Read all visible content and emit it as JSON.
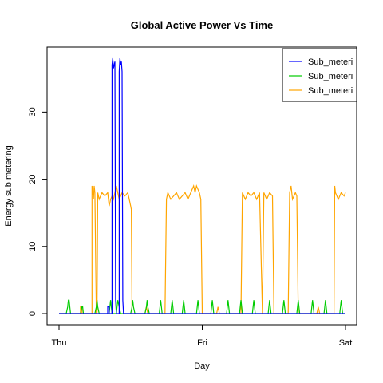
{
  "chart_data": {
    "type": "line",
    "title": "Global Active Power Vs Time",
    "xlabel": "Day",
    "ylabel": "Energy sub metering",
    "x_ticks": [
      "Thu",
      "Fri",
      "Sat"
    ],
    "xlim": [
      0,
      2
    ],
    "ylim": [
      0,
      38
    ],
    "y_ticks": [
      0,
      10,
      20,
      30
    ],
    "grid": false,
    "legend_position": "top-right",
    "legend_entries": [
      "Sub_meteri",
      "Sub_meteri",
      "Sub_meteri"
    ],
    "colors": {
      "sub_metering_1": "#0000ff",
      "sub_metering_2": "#00cc00",
      "sub_metering_3": "#ffa500"
    },
    "series": [
      {
        "name": "Sub_meteri",
        "color": "#0000ff",
        "points": [
          [
            0,
            0
          ],
          [
            0.34,
            0
          ],
          [
            0.34,
            1
          ],
          [
            0.35,
            1
          ],
          [
            0.35,
            0
          ],
          [
            0.37,
            0
          ],
          [
            0.37,
            37
          ],
          [
            0.375,
            38
          ],
          [
            0.38,
            36.5
          ],
          [
            0.385,
            37
          ],
          [
            0.39,
            37.5
          ],
          [
            0.395,
            2
          ],
          [
            0.4,
            0
          ],
          [
            0.42,
            0
          ],
          [
            0.42,
            36
          ],
          [
            0.425,
            38
          ],
          [
            0.43,
            37
          ],
          [
            0.435,
            37.5
          ],
          [
            0.44,
            36
          ],
          [
            0.445,
            2
          ],
          [
            0.45,
            0
          ],
          [
            2,
            0
          ]
        ]
      },
      {
        "name": "Sub_meteri",
        "color": "#00cc00",
        "points": [
          [
            0,
            0
          ],
          [
            0.05,
            0
          ],
          [
            0.06,
            1
          ],
          [
            0.065,
            2
          ],
          [
            0.07,
            2
          ],
          [
            0.075,
            1
          ],
          [
            0.08,
            0
          ],
          [
            0.15,
            0
          ],
          [
            0.16,
            1
          ],
          [
            0.165,
            1
          ],
          [
            0.17,
            0
          ],
          [
            0.25,
            0
          ],
          [
            0.26,
            1
          ],
          [
            0.265,
            2
          ],
          [
            0.27,
            1
          ],
          [
            0.28,
            0
          ],
          [
            0.35,
            0
          ],
          [
            0.355,
            1
          ],
          [
            0.36,
            2
          ],
          [
            0.365,
            1
          ],
          [
            0.37,
            0
          ],
          [
            0.4,
            0
          ],
          [
            0.405,
            1
          ],
          [
            0.41,
            2
          ],
          [
            0.42,
            1
          ],
          [
            0.43,
            0
          ],
          [
            0.5,
            0
          ],
          [
            0.51,
            1
          ],
          [
            0.515,
            2
          ],
          [
            0.52,
            1
          ],
          [
            0.53,
            0
          ],
          [
            0.6,
            0
          ],
          [
            0.61,
            1
          ],
          [
            0.615,
            2
          ],
          [
            0.62,
            1
          ],
          [
            0.63,
            0
          ],
          [
            0.7,
            0
          ],
          [
            0.705,
            1
          ],
          [
            0.71,
            2
          ],
          [
            0.715,
            1
          ],
          [
            0.72,
            0
          ],
          [
            0.78,
            0
          ],
          [
            0.785,
            1
          ],
          [
            0.79,
            2
          ],
          [
            0.795,
            1
          ],
          [
            0.8,
            0
          ],
          [
            0.86,
            0
          ],
          [
            0.865,
            1
          ],
          [
            0.87,
            2
          ],
          [
            0.875,
            1
          ],
          [
            0.88,
            0
          ],
          [
            0.96,
            0
          ],
          [
            0.965,
            1
          ],
          [
            0.97,
            2
          ],
          [
            0.975,
            1
          ],
          [
            0.98,
            0
          ],
          [
            1.06,
            0
          ],
          [
            1.065,
            1
          ],
          [
            1.07,
            2
          ],
          [
            1.075,
            1
          ],
          [
            1.08,
            0
          ],
          [
            1.17,
            0
          ],
          [
            1.175,
            1
          ],
          [
            1.18,
            2
          ],
          [
            1.185,
            1
          ],
          [
            1.19,
            0
          ],
          [
            1.26,
            0
          ],
          [
            1.265,
            1
          ],
          [
            1.27,
            2
          ],
          [
            1.275,
            1
          ],
          [
            1.28,
            0
          ],
          [
            1.35,
            0
          ],
          [
            1.355,
            1
          ],
          [
            1.36,
            2
          ],
          [
            1.365,
            1
          ],
          [
            1.37,
            0
          ],
          [
            1.46,
            0
          ],
          [
            1.465,
            1
          ],
          [
            1.47,
            2
          ],
          [
            1.475,
            1
          ],
          [
            1.48,
            0
          ],
          [
            1.56,
            0
          ],
          [
            1.565,
            1
          ],
          [
            1.57,
            2
          ],
          [
            1.575,
            1
          ],
          [
            1.58,
            0
          ],
          [
            1.66,
            0
          ],
          [
            1.665,
            1
          ],
          [
            1.67,
            2
          ],
          [
            1.675,
            1
          ],
          [
            1.68,
            0
          ],
          [
            1.76,
            0
          ],
          [
            1.765,
            1
          ],
          [
            1.77,
            2
          ],
          [
            1.775,
            1
          ],
          [
            1.78,
            0
          ],
          [
            1.85,
            0
          ],
          [
            1.855,
            1
          ],
          [
            1.86,
            2
          ],
          [
            1.865,
            1
          ],
          [
            1.87,
            0
          ],
          [
            1.96,
            0
          ],
          [
            1.965,
            1
          ],
          [
            1.97,
            2
          ],
          [
            1.975,
            1
          ],
          [
            1.98,
            0
          ],
          [
            2,
            0
          ]
        ]
      },
      {
        "name": "Sub_meteri",
        "color": "#ffa500",
        "points": [
          [
            0,
            0
          ],
          [
            0.15,
            0
          ],
          [
            0.15,
            1
          ],
          [
            0.16,
            1
          ],
          [
            0.16,
            0
          ],
          [
            0.23,
            0
          ],
          [
            0.23,
            19
          ],
          [
            0.24,
            17
          ],
          [
            0.245,
            19
          ],
          [
            0.25,
            18
          ],
          [
            0.26,
            0
          ],
          [
            0.265,
            0
          ],
          [
            0.27,
            18
          ],
          [
            0.28,
            17
          ],
          [
            0.3,
            18
          ],
          [
            0.32,
            17.5
          ],
          [
            0.34,
            18
          ],
          [
            0.35,
            16
          ],
          [
            0.36,
            17
          ],
          [
            0.37,
            17.5
          ],
          [
            0.38,
            17
          ],
          [
            0.4,
            19
          ],
          [
            0.42,
            17
          ],
          [
            0.44,
            18
          ],
          [
            0.46,
            17.5
          ],
          [
            0.48,
            18
          ],
          [
            0.49,
            17
          ],
          [
            0.5,
            16
          ],
          [
            0.505,
            15.5
          ],
          [
            0.51,
            0
          ],
          [
            0.6,
            0
          ],
          [
            0.61,
            1
          ],
          [
            0.62,
            0
          ],
          [
            0.74,
            0
          ],
          [
            0.75,
            17
          ],
          [
            0.76,
            18
          ],
          [
            0.78,
            17
          ],
          [
            0.8,
            17.5
          ],
          [
            0.82,
            18
          ],
          [
            0.84,
            17
          ],
          [
            0.86,
            17.5
          ],
          [
            0.88,
            18
          ],
          [
            0.9,
            17
          ],
          [
            0.92,
            18
          ],
          [
            0.94,
            19
          ],
          [
            0.95,
            18
          ],
          [
            0.96,
            19
          ],
          [
            0.98,
            18
          ],
          [
            0.99,
            17
          ],
          [
            1.0,
            0
          ],
          [
            1.1,
            0
          ],
          [
            1.11,
            1
          ],
          [
            1.12,
            0
          ],
          [
            1.27,
            0
          ],
          [
            1.28,
            18
          ],
          [
            1.3,
            17
          ],
          [
            1.32,
            18
          ],
          [
            1.34,
            17.5
          ],
          [
            1.36,
            18
          ],
          [
            1.38,
            17
          ],
          [
            1.4,
            18
          ],
          [
            1.42,
            0
          ],
          [
            1.43,
            18
          ],
          [
            1.45,
            17
          ],
          [
            1.47,
            18
          ],
          [
            1.49,
            17.5
          ],
          [
            1.5,
            0
          ],
          [
            1.6,
            0
          ],
          [
            1.61,
            18
          ],
          [
            1.62,
            19
          ],
          [
            1.63,
            17
          ],
          [
            1.65,
            18
          ],
          [
            1.66,
            17.5
          ],
          [
            1.67,
            0
          ],
          [
            1.8,
            0
          ],
          [
            1.81,
            1
          ],
          [
            1.82,
            0
          ],
          [
            1.92,
            0
          ],
          [
            1.925,
            19
          ],
          [
            1.93,
            18
          ],
          [
            1.95,
            17
          ],
          [
            1.97,
            18
          ],
          [
            1.99,
            17.5
          ],
          [
            2.0,
            18
          ]
        ]
      }
    ]
  }
}
